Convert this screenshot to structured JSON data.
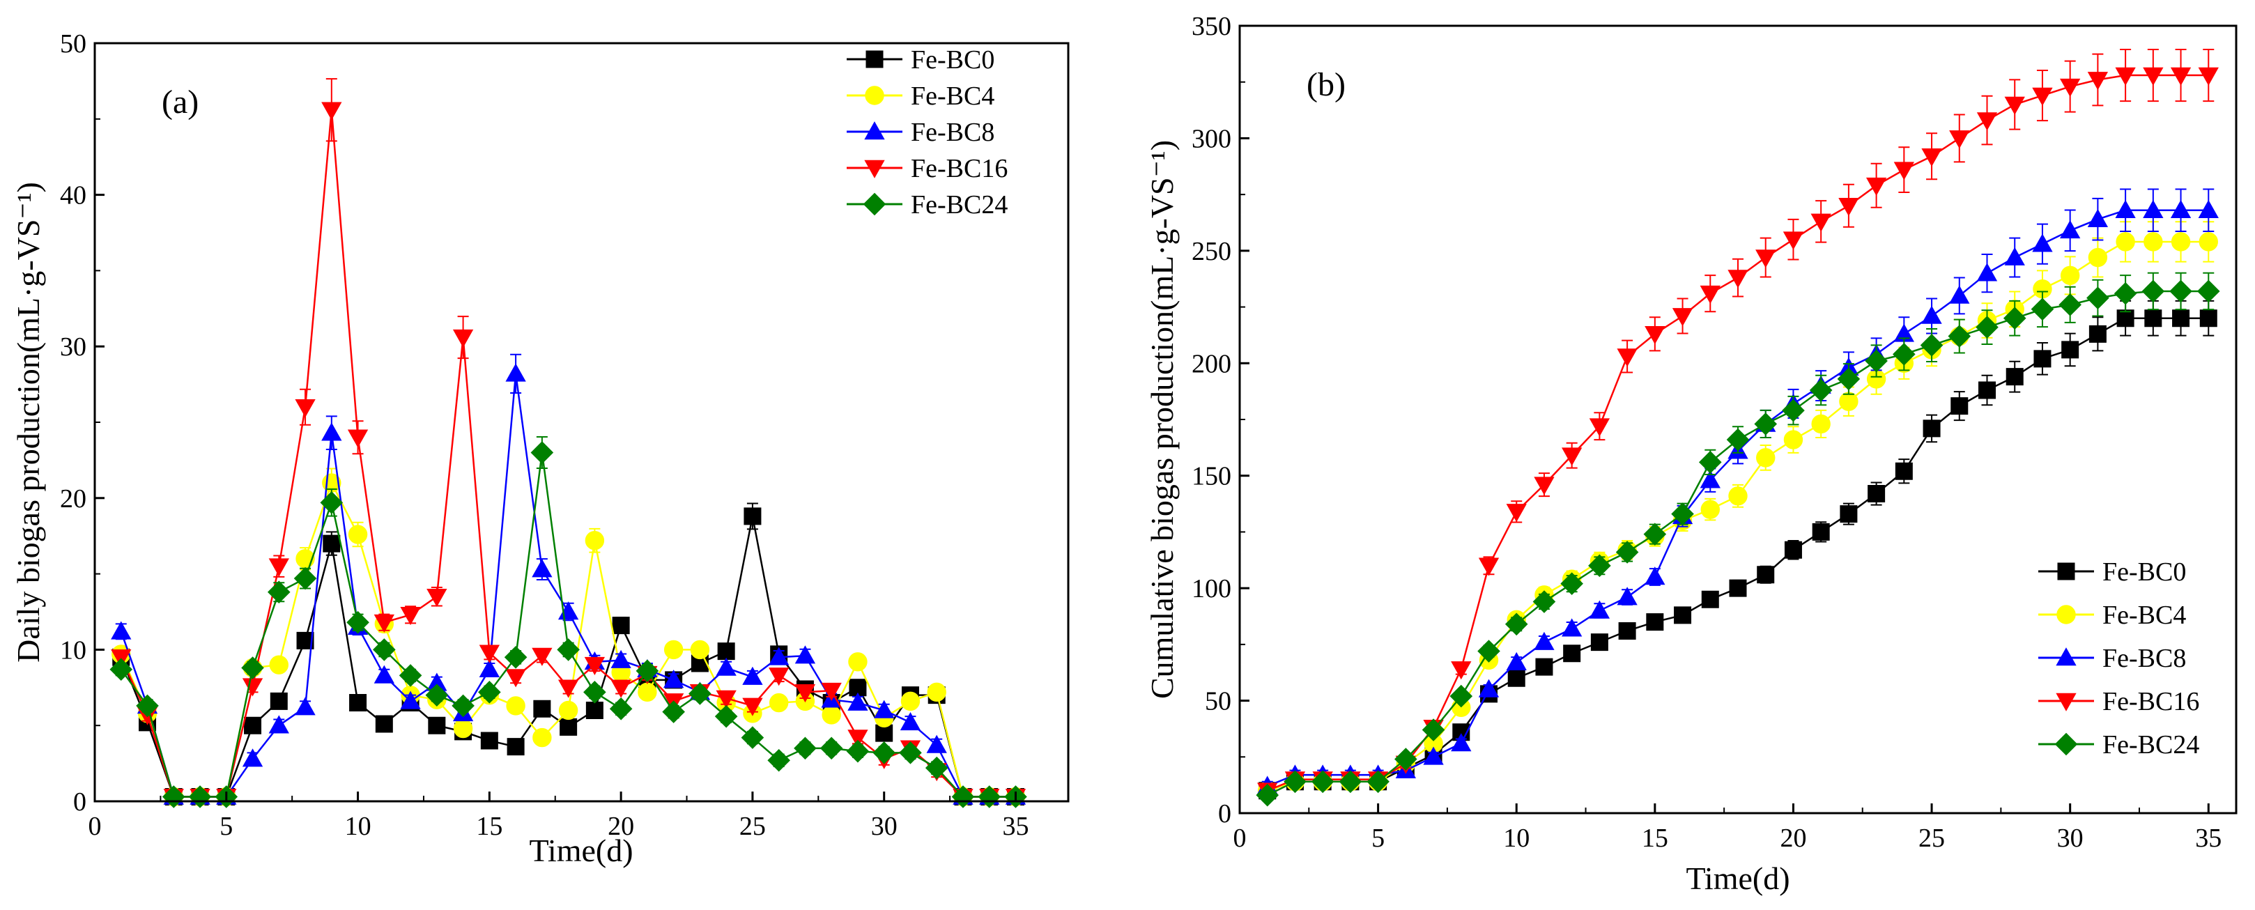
{
  "chart_data": [
    {
      "type": "line",
      "panel_label": "(a)",
      "xlabel": "Time(d)",
      "ylabel": "Daily biogas production(mL·g-VS⁻¹)",
      "xlim": [
        0,
        37
      ],
      "ylim": [
        0,
        50
      ],
      "xticks": [
        0,
        5,
        10,
        15,
        20,
        25,
        30,
        35
      ],
      "yticks": [
        0,
        10,
        20,
        30,
        40,
        50
      ],
      "legend_position": "top-right",
      "x": [
        1,
        2,
        3,
        4,
        5,
        6,
        7,
        8,
        9,
        10,
        11,
        12,
        13,
        14,
        15,
        16,
        17,
        18,
        19,
        20,
        21,
        22,
        23,
        24,
        25,
        26,
        27,
        28,
        29,
        30,
        31,
        32,
        33,
        34,
        35
      ],
      "series": [
        {
          "name": "Fe-BC0",
          "color": "#000000",
          "marker": "square",
          "values": [
            9.5,
            5.2,
            0.3,
            0.3,
            0.3,
            5.0,
            6.6,
            10.6,
            17.0,
            6.5,
            5.1,
            6.5,
            5.0,
            4.6,
            4.0,
            3.6,
            6.1,
            4.9,
            6.0,
            11.6,
            8.0,
            8.0,
            9.1,
            9.9,
            18.8,
            9.7,
            7.4,
            6.5,
            7.5,
            4.5,
            7.0,
            7.0,
            0.3,
            0.3,
            0.3
          ]
        },
        {
          "name": "Fe-BC4",
          "color": "#ffff00",
          "marker": "circle",
          "values": [
            9.7,
            5.8,
            0.3,
            0.3,
            0.3,
            8.8,
            9.0,
            16.0,
            21.0,
            17.6,
            11.7,
            7.0,
            6.7,
            4.8,
            7.0,
            6.3,
            4.2,
            6.0,
            17.2,
            8.5,
            7.2,
            10.0,
            10.0,
            6.5,
            5.8,
            6.5,
            6.6,
            5.7,
            9.2,
            5.5,
            6.6,
            7.2,
            0.3,
            0.3,
            0.3
          ]
        },
        {
          "name": "Fe-BC8",
          "color": "#0000ff",
          "marker": "triangle-up",
          "values": [
            11.2,
            6.3,
            0.3,
            0.3,
            0.3,
            2.8,
            5.0,
            6.2,
            24.3,
            11.5,
            8.3,
            6.6,
            7.8,
            5.8,
            8.7,
            28.2,
            15.3,
            12.5,
            9.2,
            9.3,
            8.7,
            8.0,
            7.2,
            8.8,
            8.2,
            9.5,
            9.6,
            6.7,
            6.5,
            6.0,
            5.2,
            3.7,
            0.3,
            0.3,
            0.3
          ]
        },
        {
          "name": "Fe-BC16",
          "color": "#ff0000",
          "marker": "triangle-down",
          "values": [
            9.5,
            5.7,
            0.3,
            0.3,
            0.3,
            7.6,
            15.5,
            26.0,
            45.6,
            24.0,
            11.8,
            12.3,
            13.5,
            30.6,
            9.8,
            8.2,
            9.6,
            7.5,
            9.0,
            7.5,
            8.4,
            6.6,
            7.2,
            6.8,
            6.3,
            8.3,
            7.2,
            7.3,
            4.2,
            2.8,
            3.5,
            2.0,
            0.3,
            0.3,
            0.3
          ]
        },
        {
          "name": "Fe-BC24",
          "color": "#008000",
          "marker": "diamond",
          "values": [
            8.7,
            6.3,
            0.3,
            0.3,
            0.3,
            8.8,
            13.8,
            14.7,
            19.7,
            11.8,
            10.0,
            8.3,
            7.0,
            6.3,
            7.2,
            9.5,
            23.0,
            10.0,
            7.2,
            6.1,
            8.6,
            5.9,
            7.1,
            5.6,
            4.2,
            2.7,
            3.5,
            3.5,
            3.3,
            3.2,
            3.2,
            2.2,
            0.3,
            0.3,
            0.3
          ]
        }
      ]
    },
    {
      "type": "line",
      "panel_label": "(b)",
      "xlabel": "Time(d)",
      "ylabel": "Cumulative biogas production(mL·g-VS⁻¹)",
      "xlim": [
        0,
        36
      ],
      "ylim": [
        0,
        350
      ],
      "xticks": [
        0,
        5,
        10,
        15,
        20,
        25,
        30,
        35
      ],
      "yticks": [
        0,
        50,
        100,
        150,
        200,
        250,
        300,
        350
      ],
      "legend_position": "bottom-right",
      "x": [
        1,
        2,
        3,
        4,
        5,
        6,
        7,
        8,
        9,
        10,
        11,
        12,
        13,
        14,
        15,
        16,
        17,
        18,
        19,
        20,
        21,
        22,
        23,
        24,
        25,
        26,
        27,
        28,
        29,
        30,
        31,
        32,
        33,
        34,
        35
      ],
      "series": [
        {
          "name": "Fe-BC0",
          "color": "#000000",
          "marker": "square",
          "values": [
            10,
            14,
            14,
            14,
            14,
            20,
            26,
            36,
            53,
            60,
            65,
            71,
            76,
            81,
            85,
            88,
            95,
            100,
            106,
            117,
            125,
            133,
            142,
            152,
            171,
            181,
            188,
            194,
            202,
            206,
            213,
            220,
            220,
            220,
            220
          ]
        },
        {
          "name": "Fe-BC4",
          "color": "#ffff00",
          "marker": "circle",
          "values": [
            10,
            14,
            14,
            14,
            14,
            22,
            31,
            47,
            68,
            86,
            97,
            104,
            112,
            117,
            123,
            130,
            135,
            141,
            158,
            166,
            173,
            183,
            193,
            200,
            206,
            212,
            219,
            224,
            233,
            239,
            247,
            254,
            254,
            254,
            254
          ]
        },
        {
          "name": "Fe-BC8",
          "color": "#0000ff",
          "marker": "triangle-up",
          "values": [
            12,
            17,
            17,
            17,
            17,
            19,
            25,
            31,
            55,
            67,
            76,
            82,
            90,
            96,
            105,
            132,
            148,
            161,
            173,
            182,
            190,
            198,
            204,
            213,
            221,
            230,
            240,
            247,
            253,
            259,
            264,
            268,
            268,
            268,
            268
          ]
        },
        {
          "name": "Fe-BC16",
          "color": "#ff0000",
          "marker": "triangle-down",
          "values": [
            10,
            15,
            15,
            15,
            15,
            22,
            38,
            64,
            110,
            134,
            146,
            159,
            172,
            203,
            213,
            221,
            231,
            238,
            247,
            255,
            263,
            270,
            279,
            286,
            292,
            300,
            308,
            315,
            319,
            323,
            326,
            328,
            328,
            328,
            328
          ]
        },
        {
          "name": "Fe-BC24",
          "color": "#008000",
          "marker": "diamond",
          "values": [
            8,
            14,
            14,
            14,
            14,
            24,
            37,
            52,
            72,
            84,
            94,
            102,
            110,
            116,
            124,
            133,
            156,
            166,
            173,
            179,
            188,
            193,
            201,
            204,
            208,
            212,
            216,
            220,
            224,
            226,
            229,
            231,
            232,
            232,
            232
          ]
        }
      ]
    }
  ]
}
